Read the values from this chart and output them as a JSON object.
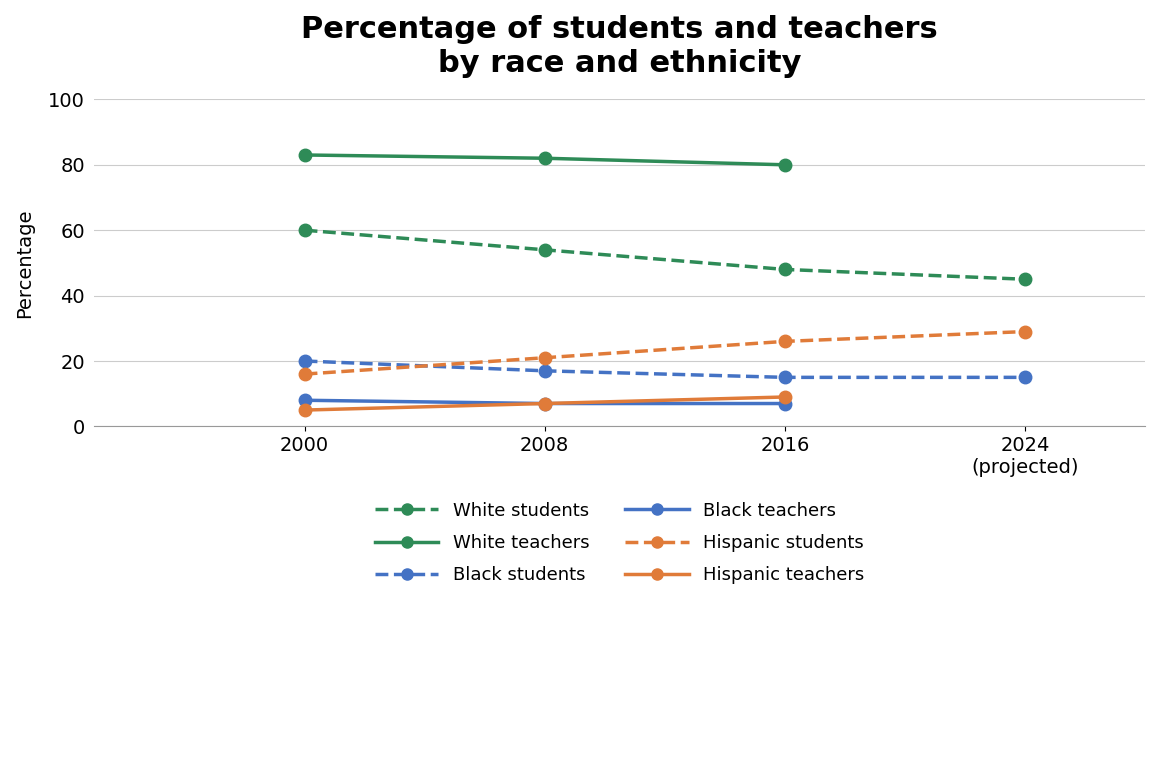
{
  "title": "Percentage of students and teachers\nby race and ethnicity",
  "xlabel": "",
  "ylabel": "Percentage",
  "years": [
    2000,
    2008,
    2016,
    2024
  ],
  "xlim": [
    1993,
    2028
  ],
  "ylim": [
    0,
    100
  ],
  "yticks": [
    0,
    20,
    40,
    60,
    80,
    100
  ],
  "xtick_labels": [
    "2000",
    "2008",
    "2016",
    "2024\n(projected)"
  ],
  "series": {
    "white_students": {
      "values": [
        60,
        54,
        48,
        45
      ],
      "color": "#2e8b57",
      "linestyle": "dashed",
      "marker": "o",
      "label": "White students",
      "linewidth": 2.5,
      "markersize": 9
    },
    "white_teachers": {
      "values": [
        83,
        82,
        80,
        null
      ],
      "color": "#2e8b57",
      "linestyle": "solid",
      "marker": "o",
      "label": "White teachers",
      "linewidth": 2.5,
      "markersize": 9
    },
    "black_students": {
      "values": [
        20,
        17,
        15,
        15
      ],
      "color": "#4472c4",
      "linestyle": "dashed",
      "marker": "o",
      "label": "Black students",
      "linewidth": 2.5,
      "markersize": 9
    },
    "black_teachers": {
      "values": [
        8,
        7,
        7,
        null
      ],
      "color": "#4472c4",
      "linestyle": "solid",
      "marker": "o",
      "label": "Black teachers",
      "linewidth": 2.5,
      "markersize": 9
    },
    "hispanic_students": {
      "values": [
        16,
        21,
        26,
        29
      ],
      "color": "#e07b39",
      "linestyle": "dashed",
      "marker": "o",
      "label": "Hispanic students",
      "linewidth": 2.5,
      "markersize": 9
    },
    "hispanic_teachers": {
      "values": [
        5,
        7,
        9,
        null
      ],
      "color": "#e07b39",
      "linestyle": "solid",
      "marker": "o",
      "label": "Hispanic teachers",
      "linewidth": 2.5,
      "markersize": 9
    }
  },
  "background_color": "#ffffff",
  "grid_color": "#cccccc",
  "title_fontsize": 22,
  "axis_label_fontsize": 14,
  "tick_fontsize": 14,
  "legend_fontsize": 13
}
